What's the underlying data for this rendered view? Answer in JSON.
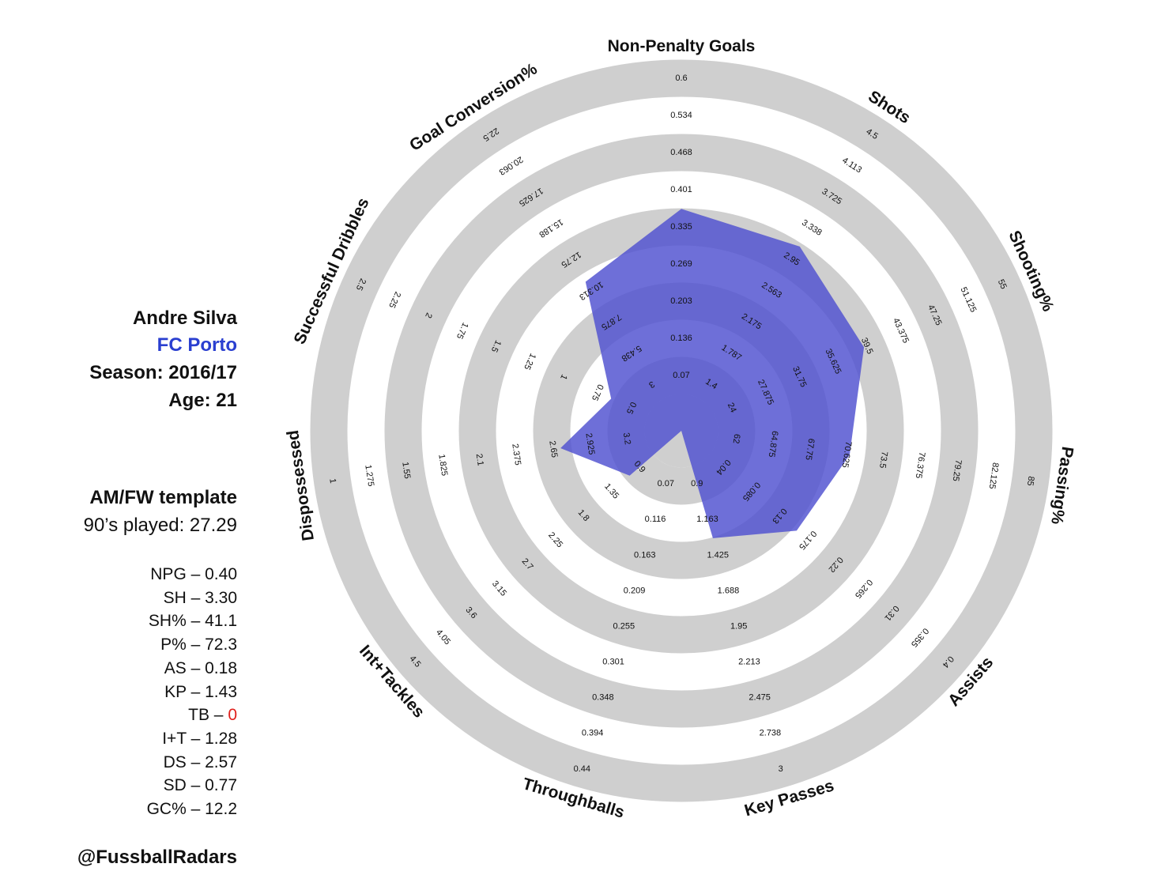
{
  "player": {
    "name": "Andre Silva",
    "team": "FC Porto",
    "season": "Season: 2016/17",
    "age": "Age: 21",
    "template": "AM/FW template",
    "played": "90’s played: 27.29",
    "handle": "@FussballRadars"
  },
  "stats": [
    {
      "label": "NPG – ",
      "value": "0.40"
    },
    {
      "label": "SH – ",
      "value": "3.30"
    },
    {
      "label": "SH% – ",
      "value": "41.1"
    },
    {
      "label": "P% – ",
      "value": "72.3"
    },
    {
      "label": "AS – ",
      "value": "0.18"
    },
    {
      "label": "KP – ",
      "value": "1.43"
    },
    {
      "label": "TB – ",
      "value": "0",
      "highlight": "#e0201c"
    },
    {
      "label": "I+T – ",
      "value": "1.28"
    },
    {
      "label": "DS – ",
      "value": "2.57"
    },
    {
      "label": "SD – ",
      "value": "0.77"
    },
    {
      "label": "GC% – ",
      "value": "12.2"
    }
  ],
  "chart_data": {
    "type": "radar",
    "fill_color": "#4e4fd0",
    "ring_color": "#cfcfcf",
    "axes": [
      {
        "name": "Non-Penalty Goals",
        "ticks": [
          "0.07",
          "0.136",
          "0.203",
          "0.269",
          "0.335",
          "0.401",
          "0.468",
          "0.534",
          "0.6"
        ],
        "value": 0.4,
        "min": 0.004,
        "max": 0.6
      },
      {
        "name": "Shots",
        "ticks": [
          "1.4",
          "1.787",
          "2.175",
          "2.563",
          "2.95",
          "3.338",
          "3.725",
          "4.113",
          "4.5"
        ],
        "value": 3.3,
        "min": 1.013,
        "max": 4.5
      },
      {
        "name": "Shooting%",
        "ticks": [
          "24",
          "27.875",
          "31.75",
          "35.625",
          "39.5",
          "43.375",
          "47.25",
          "51.125",
          "55"
        ],
        "value": 41.1,
        "min": 20.125,
        "max": 55
      },
      {
        "name": "Passing%",
        "ticks": [
          "62",
          "64.875",
          "67.75",
          "70.625",
          "73.5",
          "76.375",
          "79.25",
          "82.125",
          "85"
        ],
        "value": 72.3,
        "min": 59.125,
        "max": 85
      },
      {
        "name": "Assists",
        "ticks": [
          "0.04",
          "0.085",
          "0.13",
          "0.175",
          "0.22",
          "0.265",
          "0.31",
          "0.355",
          "0.4"
        ],
        "value": 0.18,
        "min": -0.005,
        "max": 0.4
      },
      {
        "name": "Key Passes",
        "ticks": [
          "0.9",
          "1.163",
          "1.425",
          "1.688",
          "1.95",
          "2.213",
          "2.475",
          "2.738",
          "3"
        ],
        "value": 1.43,
        "min": 0.638,
        "max": 3
      },
      {
        "name": "Throughballs",
        "ticks": [
          "0.07",
          "0.116",
          "0.163",
          "0.209",
          "0.255",
          "0.301",
          "0.348",
          "0.394",
          "0.44"
        ],
        "value": 0,
        "min": 0.024,
        "max": 0.44
      },
      {
        "name": "Int+Tackles",
        "ticks": [
          "0.9",
          "1.35",
          "1.8",
          "2.25",
          "2.7",
          "3.15",
          "3.6",
          "4.05",
          "4.5"
        ],
        "value": 1.28,
        "min": 0.45,
        "max": 4.5
      },
      {
        "name": "Dispossessed",
        "ticks": [
          "3.2",
          "2.925",
          "2.65",
          "2.375",
          "2.1",
          "1.825",
          "1.55",
          "1.275",
          "1"
        ],
        "value": 2.57,
        "min": 3.475,
        "max": 1
      },
      {
        "name": "Successful Dribbles",
        "ticks": [
          "0.5",
          "0.75",
          "1",
          "1.25",
          "1.5",
          "1.75",
          "2",
          "2.25",
          "2.5"
        ],
        "value": 0.77,
        "min": 0.25,
        "max": 2.5
      },
      {
        "name": "Goal Conversion%",
        "ticks": [
          "3",
          "5.438",
          "7.875",
          "10.313",
          "12.75",
          "15.188",
          "17.625",
          "20.063",
          "22.5"
        ],
        "value": 12.2,
        "min": 0.563,
        "max": 22.5
      }
    ]
  }
}
